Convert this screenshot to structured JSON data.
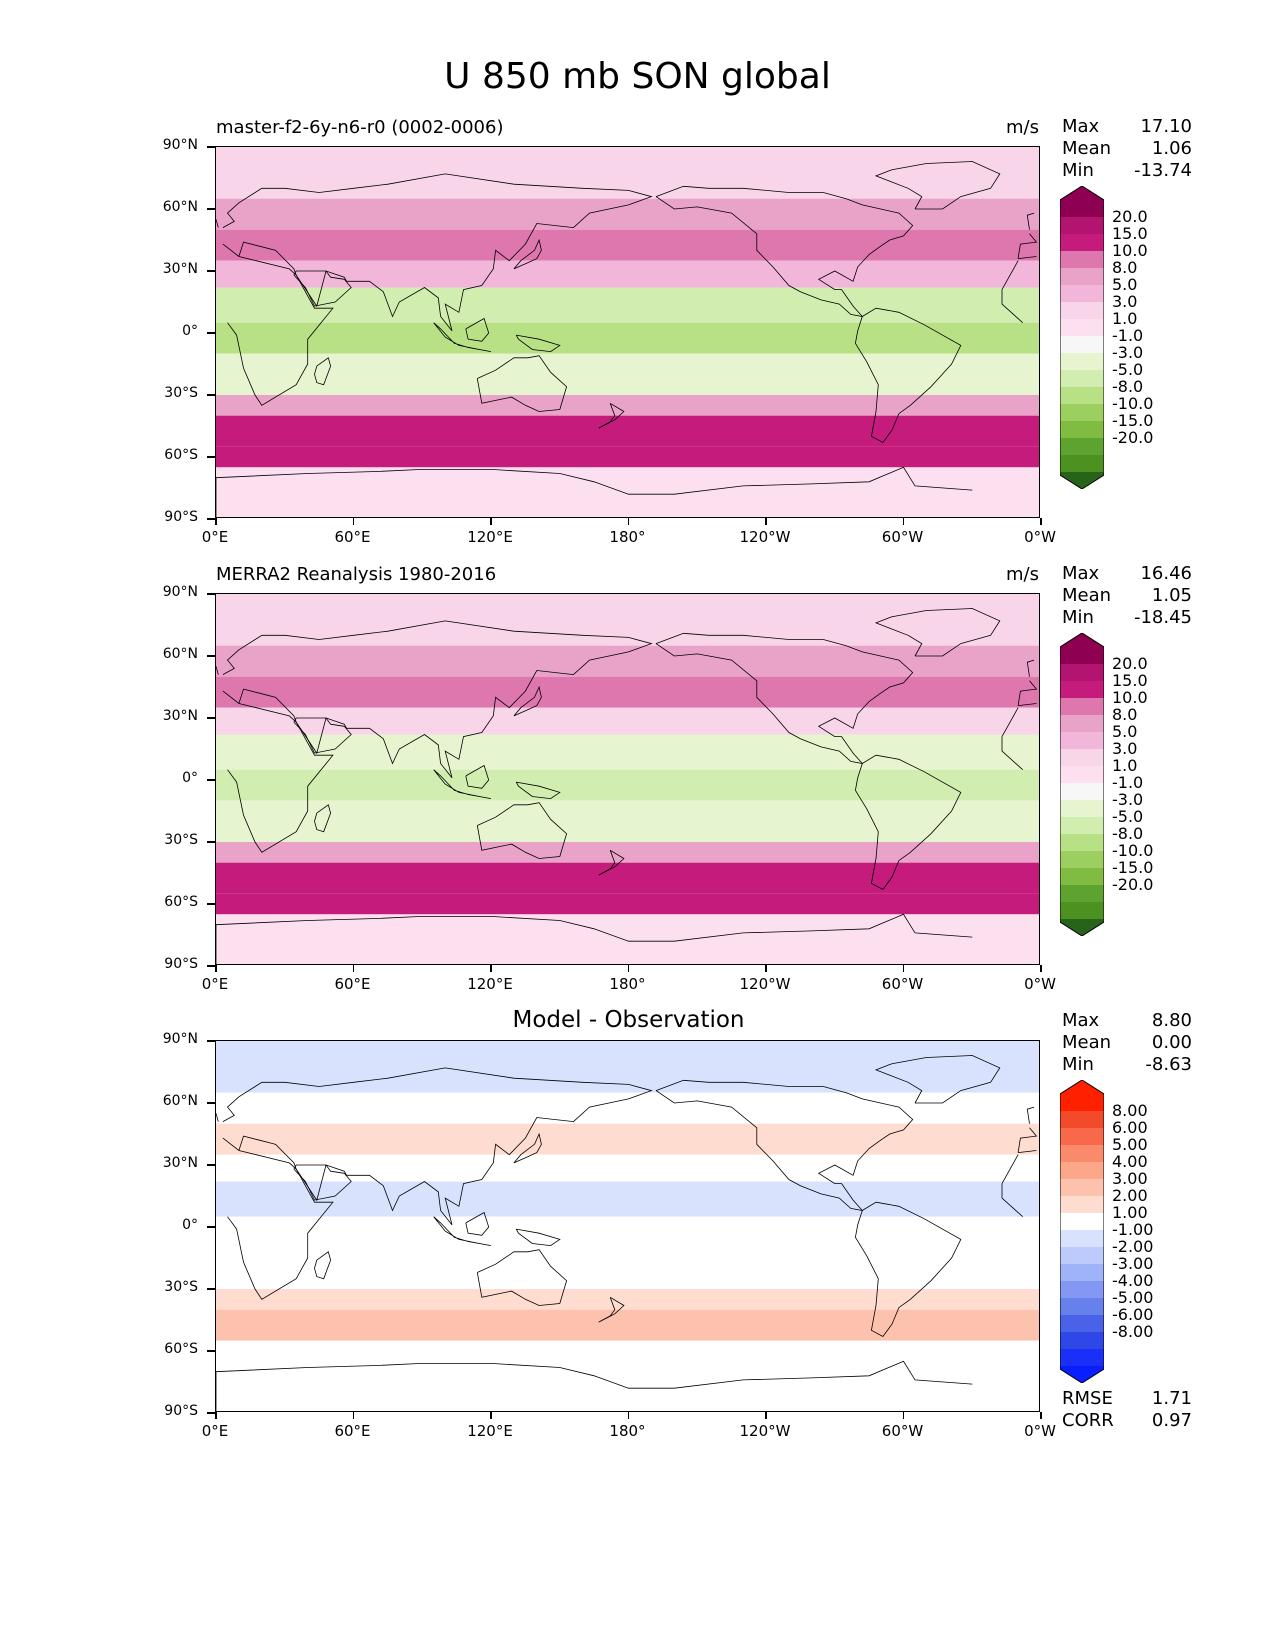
{
  "figure_title": "U 850 mb SON global",
  "lat_labels": [
    "90°N",
    "60°N",
    "30°N",
    "0°",
    "30°S",
    "60°S",
    "90°S"
  ],
  "lon_labels": [
    "0°E",
    "60°E",
    "120°E",
    "180°",
    "120°W",
    "60°W",
    "0°W"
  ],
  "panels": [
    {
      "title": "master-f2-6y-n6-r0 (0002-0006)",
      "units": "m/s",
      "stats": [
        {
          "label": "Max",
          "value": "17.10"
        },
        {
          "label": "Mean",
          "value": "1.06"
        },
        {
          "label": "Min",
          "value": "-13.74"
        }
      ],
      "colorbar_labels": [
        "20.0",
        "15.0",
        "10.0",
        "8.0",
        "5.0",
        "3.0",
        "1.0",
        "-1.0",
        "-3.0",
        "-5.0",
        "-8.0",
        "-10.0",
        "-15.0",
        "-20.0"
      ],
      "colorbar_colors": [
        "#8e0152",
        "#b3146f",
        "#c51b7d",
        "#de77ae",
        "#e9a3c9",
        "#f1b6da",
        "#f8d5e8",
        "#fde0ef",
        "#f7f7f7",
        "#e6f5d0",
        "#d2edb0",
        "#b8e186",
        "#9ccf60",
        "#7fbc41",
        "#5ea22f",
        "#4d9221",
        "#276419"
      ],
      "field": [
        {
          "band": "90N-65N",
          "value": 2
        },
        {
          "band": "65N-50N",
          "value": 5
        },
        {
          "band": "50N-35N",
          "value": 9
        },
        {
          "band": "35N-22N",
          "value": 3
        },
        {
          "band": "22N-5N",
          "value": -6
        },
        {
          "band": "5N-10S",
          "value": -9
        },
        {
          "band": "10S-30S",
          "value": -4
        },
        {
          "band": "30S-40S",
          "value": 6
        },
        {
          "band": "40S-55S",
          "value": 14
        },
        {
          "band": "55S-65S",
          "value": 10
        },
        {
          "band": "65S-90S",
          "value": 0
        }
      ]
    },
    {
      "title": "MERRA2 Reanalysis 1980-2016",
      "units": "m/s",
      "stats": [
        {
          "label": "Max",
          "value": "16.46"
        },
        {
          "label": "Mean",
          "value": "1.05"
        },
        {
          "label": "Min",
          "value": "-18.45"
        }
      ],
      "colorbar_labels": [
        "20.0",
        "15.0",
        "10.0",
        "8.0",
        "5.0",
        "3.0",
        "1.0",
        "-1.0",
        "-3.0",
        "-5.0",
        "-8.0",
        "-10.0",
        "-15.0",
        "-20.0"
      ],
      "colorbar_colors": [
        "#8e0152",
        "#b3146f",
        "#c51b7d",
        "#de77ae",
        "#e9a3c9",
        "#f1b6da",
        "#f8d5e8",
        "#fde0ef",
        "#f7f7f7",
        "#e6f5d0",
        "#d2edb0",
        "#b8e186",
        "#9ccf60",
        "#7fbc41",
        "#5ea22f",
        "#4d9221",
        "#276419"
      ],
      "field": [
        {
          "band": "90N-65N",
          "value": 2
        },
        {
          "band": "65N-50N",
          "value": 5
        },
        {
          "band": "50N-35N",
          "value": 8
        },
        {
          "band": "35N-22N",
          "value": 2
        },
        {
          "band": "22N-5N",
          "value": -5
        },
        {
          "band": "5N-10S",
          "value": -7
        },
        {
          "band": "10S-30S",
          "value": -4
        },
        {
          "band": "30S-40S",
          "value": 6
        },
        {
          "band": "40S-55S",
          "value": 12
        },
        {
          "band": "55S-65S",
          "value": 10
        },
        {
          "band": "65S-90S",
          "value": 0
        }
      ]
    },
    {
      "title": "Model - Observation",
      "units": "",
      "stats": [
        {
          "label": "Max",
          "value": "8.80"
        },
        {
          "label": "Mean",
          "value": "0.00"
        },
        {
          "label": "Min",
          "value": "-8.63"
        }
      ],
      "colorbar_labels": [
        "8.00",
        "6.00",
        "5.00",
        "4.00",
        "3.00",
        "2.00",
        "1.00",
        "-1.00",
        "-2.00",
        "-3.00",
        "-4.00",
        "-5.00",
        "-6.00",
        "-8.00"
      ],
      "colorbar_colors": [
        "#ff2000",
        "#f44a2c",
        "#f7694a",
        "#fa8a6c",
        "#fca68a",
        "#fdc2ad",
        "#fedccf",
        "#ffffff",
        "#d9e2fd",
        "#bccbfb",
        "#9fb3f8",
        "#8298f2",
        "#6680ec",
        "#4a62e8",
        "#2f47e6",
        "#1a30f8",
        "#0a1fff"
      ],
      "stats_bottom": [
        {
          "label": "RMSE",
          "value": "1.71"
        },
        {
          "label": "CORR",
          "value": "0.97"
        }
      ],
      "field": [
        {
          "band": "90N-65N",
          "value": -1.5
        },
        {
          "band": "65N-50N",
          "value": 0
        },
        {
          "band": "50N-35N",
          "value": 1.5
        },
        {
          "band": "35N-22N",
          "value": 0
        },
        {
          "band": "22N-5N",
          "value": -1.5
        },
        {
          "band": "5N-10S",
          "value": 0
        },
        {
          "band": "10S-30S",
          "value": 0
        },
        {
          "band": "30S-40S",
          "value": 1.5
        },
        {
          "band": "40S-55S",
          "value": 2.5
        },
        {
          "band": "55S-65S",
          "value": 0
        },
        {
          "band": "65S-90S",
          "value": 0
        }
      ]
    }
  ]
}
